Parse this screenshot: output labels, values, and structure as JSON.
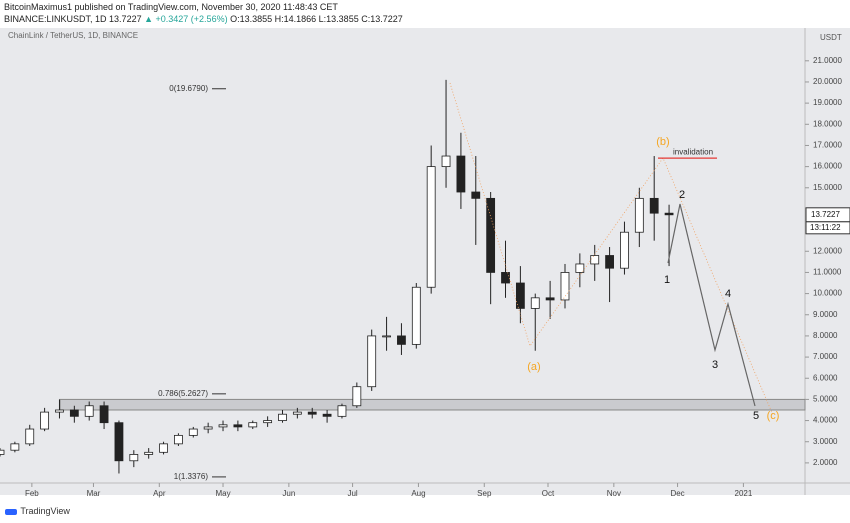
{
  "header": {
    "publisher": "BitcoinMaximus1 published on TradingView.com, November 30, 2020 11:48:43 CET",
    "symbol": "BINANCE:LINKUSDT, 1D",
    "last": "13.7227",
    "change": "▲ +0.3427 (+2.56%)",
    "ohlc": "O:13.3855 H:14.1866 L:13.3855 C:13.7227"
  },
  "footer": {
    "brand": "TradingView"
  },
  "chart_data": {
    "type": "candlestick",
    "title": "ChainLink / TetherUS, 1D, BINANCE",
    "y_unit": "USDT",
    "price_label": "13.7227",
    "countdown": "13:11:22",
    "x": [
      16,
      23,
      30,
      37,
      44,
      51,
      58,
      65,
      72,
      79,
      86,
      93,
      100,
      107,
      114,
      121,
      128,
      135,
      142,
      149,
      156,
      163,
      170,
      177,
      184,
      191,
      198,
      205,
      212,
      219,
      226,
      233,
      240,
      247,
      254,
      261,
      268,
      275,
      282,
      289,
      296,
      303,
      310,
      317,
      324,
      331
    ],
    "open": [
      2.4,
      2.6,
      2.9,
      3.6,
      4.4,
      4.5,
      4.2,
      4.7,
      3.9,
      2.1,
      2.4,
      2.5,
      2.9,
      3.3,
      3.6,
      3.7,
      3.8,
      3.7,
      3.9,
      4.0,
      4.3,
      4.4,
      4.3,
      4.2,
      4.7,
      5.6,
      8.0,
      8.0,
      7.6,
      10.3,
      16.0,
      16.5,
      14.8,
      14.5,
      11.0,
      10.5,
      9.3,
      9.8,
      9.7,
      11.0,
      11.4,
      11.8,
      11.2,
      12.9,
      14.5,
      13.8
    ],
    "high": [
      2.7,
      3.0,
      3.8,
      4.6,
      5.0,
      4.7,
      4.9,
      4.9,
      4.0,
      2.6,
      2.7,
      3.0,
      3.4,
      3.7,
      3.9,
      4.0,
      4.0,
      4.0,
      4.2,
      4.5,
      4.6,
      4.6,
      4.5,
      4.8,
      5.8,
      8.3,
      8.9,
      8.6,
      10.5,
      17.0,
      20.1,
      17.6,
      16.5,
      14.8,
      12.5,
      11.3,
      10.0,
      10.6,
      11.4,
      11.9,
      12.3,
      12.2,
      13.4,
      15.0,
      16.5,
      14.2
    ],
    "low": [
      2.3,
      2.5,
      2.8,
      3.5,
      4.1,
      3.9,
      4.0,
      3.6,
      1.5,
      1.8,
      2.2,
      2.4,
      2.8,
      3.2,
      3.4,
      3.5,
      3.5,
      3.6,
      3.7,
      3.9,
      4.1,
      4.1,
      3.9,
      4.1,
      4.6,
      5.4,
      7.3,
      7.1,
      7.4,
      10.0,
      15.0,
      14.0,
      12.3,
      9.5,
      9.8,
      8.6,
      7.3,
      8.8,
      9.3,
      10.3,
      10.6,
      9.6,
      10.9,
      12.2,
      12.5,
      11.3
    ],
    "close": [
      2.6,
      2.9,
      3.6,
      4.4,
      4.5,
      4.2,
      4.7,
      3.9,
      2.1,
      2.4,
      2.5,
      2.9,
      3.3,
      3.6,
      3.7,
      3.8,
      3.7,
      3.9,
      4.0,
      4.3,
      4.4,
      4.3,
      4.2,
      4.7,
      5.6,
      8.0,
      8.0,
      7.6,
      10.3,
      16.0,
      16.5,
      14.8,
      14.5,
      11.0,
      10.5,
      9.3,
      9.8,
      9.7,
      11.0,
      11.4,
      11.8,
      11.2,
      12.9,
      14.5,
      13.8,
      13.7227
    ],
    "xlim": [
      16,
      395
    ],
    "xticks": [
      {
        "value": 31,
        "label": "Feb"
      },
      {
        "value": 60,
        "label": "Mar"
      },
      {
        "value": 91,
        "label": "Apr"
      },
      {
        "value": 121,
        "label": "May"
      },
      {
        "value": 152,
        "label": "Jun"
      },
      {
        "value": 182,
        "label": "Jul"
      },
      {
        "value": 213,
        "label": "Aug"
      },
      {
        "value": 244,
        "label": "Sep"
      },
      {
        "value": 274,
        "label": "Oct"
      },
      {
        "value": 305,
        "label": "Nov"
      },
      {
        "value": 335,
        "label": "Dec"
      },
      {
        "value": 366,
        "label": "2021"
      }
    ],
    "ylim": [
      1.05,
      22.55
    ],
    "yticks": [
      {
        "value": 2,
        "label": "2.0000"
      },
      {
        "value": 3,
        "label": "3.0000"
      },
      {
        "value": 4,
        "label": "4.0000"
      },
      {
        "value": 5,
        "label": "5.0000"
      },
      {
        "value": 6,
        "label": "6.0000"
      },
      {
        "value": 7,
        "label": "7.0000"
      },
      {
        "value": 8,
        "label": "8.0000"
      },
      {
        "value": 9,
        "label": "9.0000"
      },
      {
        "value": 10,
        "label": "10.0000"
      },
      {
        "value": 11,
        "label": "11.0000"
      },
      {
        "value": 12,
        "label": "12.0000"
      },
      {
        "value": 15,
        "label": "15.0000"
      },
      {
        "value": 16,
        "label": "16.0000"
      },
      {
        "value": 17,
        "label": "17.0000"
      },
      {
        "value": 18,
        "label": "18.0000"
      },
      {
        "value": 19,
        "label": "19.0000"
      },
      {
        "value": 20,
        "label": "20.0000"
      },
      {
        "value": 21,
        "label": "21.0000"
      }
    ],
    "up_color": "#ffffff",
    "down_color": "#222222",
    "wick_color": "#222222",
    "fib_levels": [
      {
        "label": "0(19.6790)",
        "value": 19.679
      },
      {
        "label": "0.786(5.2627)",
        "value": 5.2627
      },
      {
        "label": "1(1.3376)",
        "value": 1.3376
      }
    ],
    "zone": [
      4.5,
      5.0
    ],
    "invalidation": {
      "label": "invalidation",
      "value": 16.4
    },
    "wave_labels": {
      "b": "(b)",
      "a": "(a)",
      "c": "(c)",
      "w1": "1",
      "w2": "2",
      "w3": "3",
      "w4": "4",
      "w5": "5"
    }
  }
}
